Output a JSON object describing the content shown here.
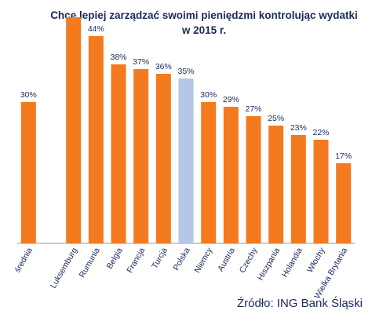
{
  "chart_data": {
    "type": "bar",
    "title": "Chcę lepiej zarządzać swoimi pieniędzmi kontrolując wydatki w 2015 r.",
    "categories": [
      "średnia",
      "",
      "Luksemburg",
      "Rumunia",
      "Belgia",
      "Francja",
      "Turcja",
      "Polska",
      "Niemcy",
      "Austria",
      "Czechy",
      "Hiszpania",
      "Holandia",
      "Włochy",
      "Wielka Brytania"
    ],
    "values": [
      30,
      null,
      48,
      44,
      38,
      37,
      36,
      35,
      30,
      29,
      27,
      25,
      23,
      22,
      17
    ],
    "data_labels": [
      "30%",
      "",
      "",
      "44%",
      "38%",
      "37%",
      "36%",
      "35%",
      "30%",
      "29%",
      "27%",
      "25%",
      "23%",
      "22%",
      "17%"
    ],
    "ylim": [
      0,
      50
    ],
    "grid": false,
    "colors": {
      "default": "#f47a1f",
      "highlight": "#b4c6e7",
      "axis": "#999999",
      "text": "#1a2a5a"
    },
    "highlight_category": "Polska",
    "source": "Źródło: ING Bank Śląski"
  }
}
